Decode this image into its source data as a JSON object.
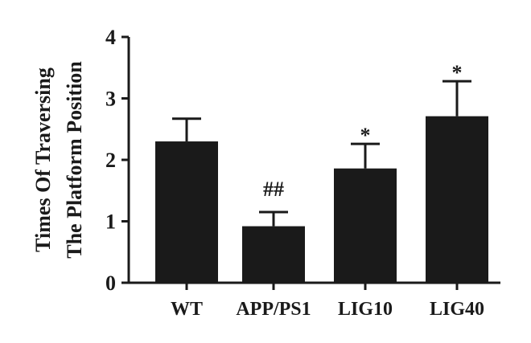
{
  "chart_data": {
    "type": "bar",
    "title": "",
    "xlabel": "",
    "ylabel_lines": [
      "Times Of Traversing",
      "The Platform Position"
    ],
    "categories": [
      "WT",
      "APP/PS1",
      "LIG10",
      "LIG40"
    ],
    "values": [
      2.3,
      0.92,
      1.86,
      2.71
    ],
    "error_upper": [
      0.37,
      0.23,
      0.4,
      0.57
    ],
    "annotations": [
      "",
      "##",
      "*",
      "*"
    ],
    "ylim": [
      0,
      4
    ],
    "yticks": [
      0,
      1,
      2,
      3,
      4
    ],
    "grid": false,
    "legend": "none",
    "colors": {
      "bar": "#1a1a1a",
      "axis": "#1a1a1a",
      "text": "#1a1a1a"
    }
  }
}
